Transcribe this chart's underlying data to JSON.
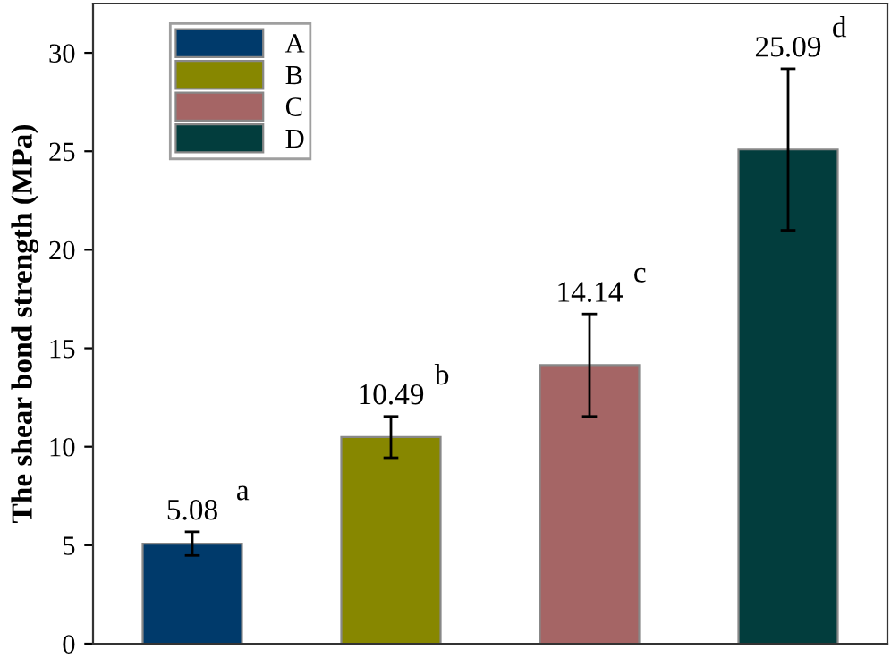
{
  "chart_data": {
    "type": "bar",
    "ylabel": "The shear bond strength (MPa)",
    "categories": [
      null,
      null,
      null,
      null
    ],
    "series": [
      {
        "name": "A",
        "color": "#003a6b",
        "values": [
          5.08,
          null,
          null,
          null
        ],
        "errors": [
          0.6,
          null,
          null,
          null
        ]
      },
      {
        "name": "B",
        "color": "#878700",
        "values": [
          null,
          10.49,
          null,
          null
        ],
        "errors": [
          null,
          1.05,
          null,
          null
        ]
      },
      {
        "name": "C",
        "color": "#a56565",
        "values": [
          null,
          null,
          14.14,
          null
        ],
        "errors": [
          null,
          null,
          2.6,
          null
        ]
      },
      {
        "name": "D",
        "color": "#023d3d",
        "values": [
          null,
          null,
          null,
          25.09
        ],
        "errors": [
          null,
          null,
          null,
          4.1
        ]
      }
    ],
    "data_labels": true,
    "annotations": [
      "a",
      "b",
      "c",
      "d"
    ],
    "ylim": [
      0,
      32.5
    ],
    "yticks": [
      0,
      5,
      10,
      15,
      20,
      25,
      30
    ],
    "grid": false,
    "legend": "top left"
  }
}
